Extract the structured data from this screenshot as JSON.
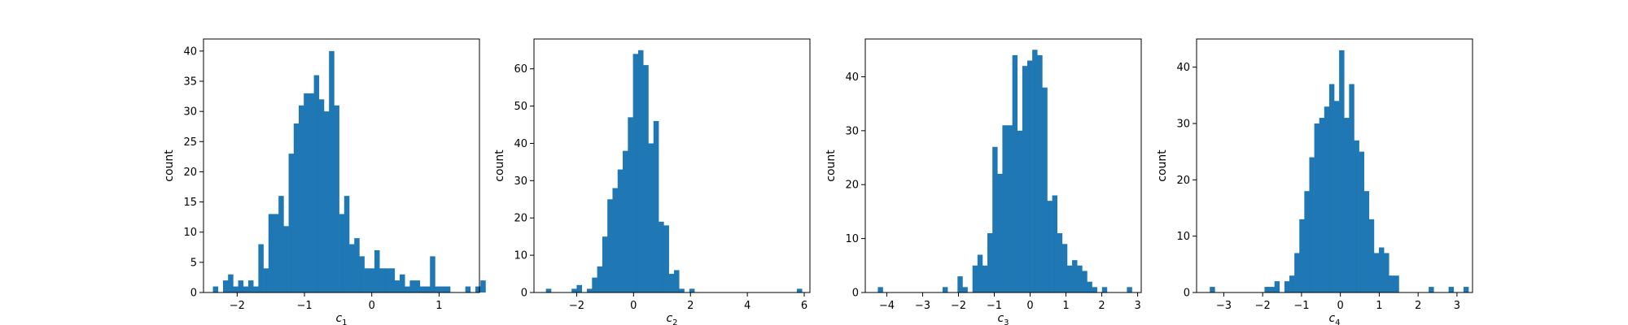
{
  "figure": {
    "background": "#ffffff",
    "bar_color": "#1f77b4",
    "axis_color": "#000000"
  },
  "chart_data": [
    {
      "type": "bar",
      "xlabel_base": "c",
      "xlabel_sub": "1",
      "ylabel": "count",
      "xlim": [
        -2.5,
        1.6
      ],
      "ylim": [
        0,
        42
      ],
      "xticks": [
        -2,
        -1,
        0,
        1
      ],
      "xtick_labels": [
        "−2",
        "−1",
        "0",
        "1"
      ],
      "yticks": [
        0,
        5,
        10,
        15,
        20,
        25,
        30,
        35,
        40
      ],
      "ytick_labels": [
        "0",
        "5",
        "10",
        "15",
        "20",
        "25",
        "30",
        "35",
        "40"
      ],
      "grid": false,
      "bin_start": -2.36,
      "bin_width": 0.075,
      "values": [
        1,
        0,
        2,
        3,
        1,
        2,
        1,
        2,
        1,
        8,
        4,
        13,
        13,
        16,
        11,
        23,
        28,
        31,
        33,
        33,
        36,
        32,
        30,
        40,
        31,
        13,
        16,
        8,
        9,
        6,
        4,
        4,
        7,
        4,
        4,
        4,
        2,
        3,
        1,
        2,
        2,
        1,
        1,
        6,
        1,
        1,
        1,
        0,
        0,
        0,
        1,
        0,
        1,
        2
      ]
    },
    {
      "type": "bar",
      "xlabel_base": "c",
      "xlabel_sub": "2",
      "ylabel": "count",
      "xlim": [
        -3.5,
        6.2
      ],
      "ylim": [
        0,
        68
      ],
      "xticks": [
        -2,
        0,
        2,
        4,
        6
      ],
      "xtick_labels": [
        "−2",
        "0",
        "2",
        "4",
        "6"
      ],
      "yticks": [
        0,
        10,
        20,
        30,
        40,
        50,
        60
      ],
      "ytick_labels": [
        "0",
        "10",
        "20",
        "30",
        "40",
        "50",
        "60"
      ],
      "grid": false,
      "bin_start": -3.08,
      "bin_width": 0.18,
      "values": [
        1,
        0,
        0,
        0,
        0,
        1,
        2,
        0,
        1,
        4,
        7,
        15,
        25,
        28,
        33,
        38,
        47,
        64,
        65,
        61,
        40,
        46,
        19,
        18,
        5,
        6,
        1,
        0,
        1,
        0,
        0,
        0,
        0,
        0,
        0,
        0,
        0,
        0,
        0,
        0,
        0,
        0,
        0,
        0,
        0,
        0,
        0,
        0,
        0,
        1
      ]
    },
    {
      "type": "bar",
      "xlabel_base": "c",
      "xlabel_sub": "3",
      "ylabel": "count",
      "xlim": [
        -4.6,
        3.1
      ],
      "ylim": [
        0,
        47
      ],
      "xticks": [
        -4,
        -3,
        -2,
        -1,
        0,
        1,
        2,
        3
      ],
      "xtick_labels": [
        "−4",
        "−3",
        "−2",
        "−1",
        "0",
        "1",
        "2",
        "3"
      ],
      "grid": false,
      "yticks": [
        0,
        10,
        20,
        30,
        40
      ],
      "ytick_labels": [
        "0",
        "10",
        "20",
        "30",
        "40"
      ],
      "bin_start": -4.25,
      "bin_width": 0.139,
      "values": [
        1,
        0,
        0,
        0,
        0,
        0,
        0,
        0,
        0,
        0,
        0,
        0,
        0,
        1,
        0,
        0,
        3,
        1,
        0,
        5,
        7,
        5,
        11,
        27,
        22,
        31,
        31,
        44,
        30,
        42,
        43,
        45,
        44,
        38,
        17,
        18,
        11,
        9,
        5,
        6,
        5,
        4,
        2,
        1,
        0,
        1,
        0,
        0,
        0,
        0,
        1
      ]
    },
    {
      "type": "bar",
      "xlabel_base": "c",
      "xlabel_sub": "4",
      "ylabel": "count",
      "xlim": [
        -3.7,
        3.4
      ],
      "ylim": [
        0,
        45
      ],
      "xticks": [
        -3,
        -2,
        -1,
        0,
        1,
        2,
        3
      ],
      "xtick_labels": [
        "−3",
        "−2",
        "−1",
        "0",
        "1",
        "2",
        "3"
      ],
      "yticks": [
        0,
        10,
        20,
        30,
        40
      ],
      "ytick_labels": [
        "0",
        "10",
        "20",
        "30",
        "40"
      ],
      "grid": false,
      "bin_start": -3.36,
      "bin_width": 0.128,
      "values": [
        1,
        0,
        0,
        0,
        0,
        0,
        0,
        0,
        0,
        0,
        0,
        1,
        1,
        2,
        0,
        2,
        3,
        7,
        13,
        18,
        24,
        30,
        31,
        33,
        37,
        34,
        43,
        31,
        37,
        27,
        25,
        18,
        13,
        7,
        8,
        7,
        3,
        3,
        0,
        0,
        0,
        0,
        0,
        0,
        1,
        0,
        0,
        0,
        1,
        0,
        0,
        1
      ]
    }
  ]
}
